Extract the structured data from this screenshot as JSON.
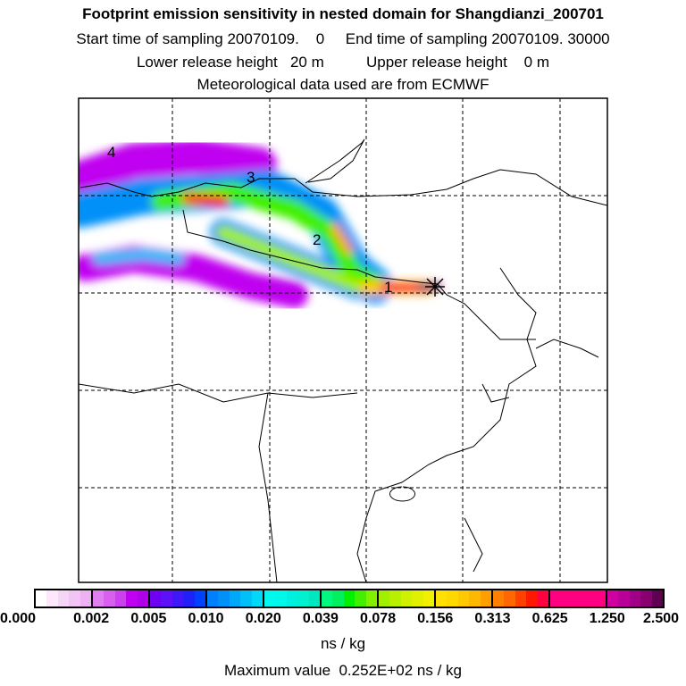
{
  "title": "Footprint emission sensitivity in nested domain for Shangdianzi_200701",
  "line2": "Start time of sampling 20070109.    0     End time of sampling 20070109. 30000",
  "line3": "Lower release height   20 m          Upper release height    0 m",
  "line4": "Meteorological data used are from ECMWF",
  "map_labels": [
    "1",
    "2",
    "3",
    "4"
  ],
  "colorbar": {
    "ticks": [
      "0.000",
      "0.002",
      "0.005",
      "0.010",
      "0.020",
      "0.039",
      "0.078",
      "0.156",
      "0.313",
      "0.625",
      "1.250",
      "2.500"
    ],
    "segments": [
      [
        "#ffffff",
        "#fbe8fb",
        "#f6d6f8",
        "#f2c4f5",
        "#eeb2f2"
      ],
      [
        "#e080f0",
        "#d860ef",
        "#cc40ef",
        "#c000f0",
        "#b000e8"
      ],
      [
        "#7000f0",
        "#6010f8",
        "#4018f8",
        "#2020f8",
        "#0040ff"
      ],
      [
        "#0080ff",
        "#0090f8",
        "#00a8f8",
        "#00c0f8",
        "#00d8f8"
      ],
      [
        "#00f8f0",
        "#00f8e8",
        "#00f0e0",
        "#00f0d0",
        "#00e8c0"
      ],
      [
        "#00f880",
        "#00f060",
        "#00f000",
        "#40f000",
        "#80f000"
      ],
      [
        "#a0f000",
        "#b8f000",
        "#d0f000",
        "#e0f000",
        "#f0f000"
      ],
      [
        "#ffe000",
        "#ffd800",
        "#ffc800",
        "#ffb800",
        "#ffa000"
      ],
      [
        "#ff8000",
        "#ff6800",
        "#ff4000",
        "#ff1800",
        "#ff0040"
      ],
      [
        "#ff0080",
        "#ff0080",
        "#ff0080",
        "#ff0080",
        "#ff0080"
      ],
      [
        "#d000a0",
        "#b80098",
        "#a00088",
        "#880070",
        "#600050"
      ]
    ],
    "unit": "ns / kg"
  },
  "max_value": "Maximum value  0.252E+02 ns / kg"
}
